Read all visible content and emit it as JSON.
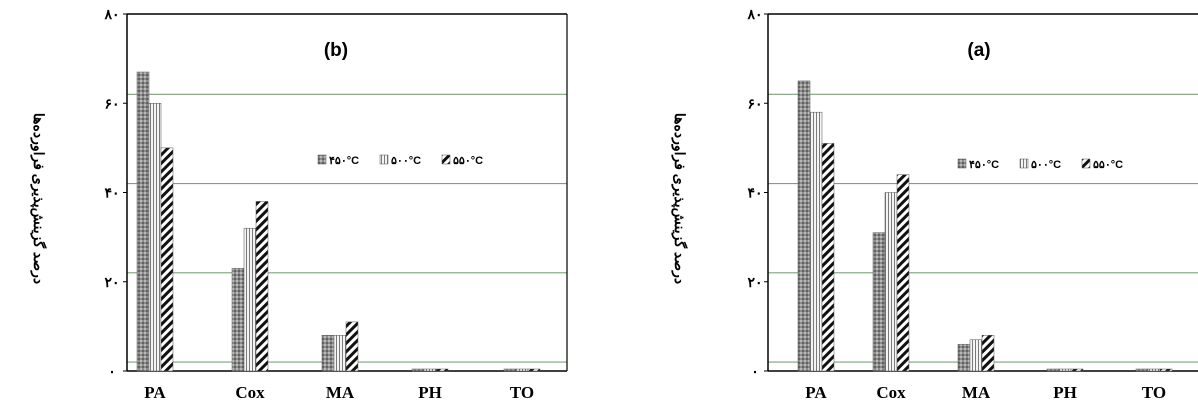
{
  "chart_data": [
    {
      "type": "bar",
      "panel_label": "(b)",
      "ylabel": "درصد گزینش‌پذیری فراورده‌ها",
      "y_ticks": [
        "۰",
        "۲۰",
        "۴۰",
        "۶۰",
        "۸۰"
      ],
      "y_tick_values": [
        0,
        20,
        40,
        60,
        80
      ],
      "ylim": [
        0,
        80
      ],
      "categories": [
        "PA",
        "Cox",
        "MA",
        "PH",
        "TO"
      ],
      "series": [
        {
          "name": "۴۵۰°C",
          "values": [
            67,
            23,
            8,
            0.3,
            0.3
          ],
          "pattern": "dots"
        },
        {
          "name": "۵۰۰°C",
          "values": [
            60,
            32,
            8,
            0.3,
            0.3
          ],
          "pattern": "vertical"
        },
        {
          "name": "۵۵۰°C",
          "values": [
            50,
            38,
            11,
            0.3,
            0.3
          ],
          "pattern": "diagonal"
        }
      ],
      "gridlines": [
        2,
        22,
        42,
        62
      ],
      "legend_position": "top-right"
    },
    {
      "type": "bar",
      "panel_label": "(a)",
      "ylabel": "درصد گزینش‌پذیری فراورده‌ها",
      "y_ticks": [
        "۰",
        "۲۰",
        "۴۰",
        "۶۰",
        "۸۰"
      ],
      "y_tick_values": [
        0,
        20,
        40,
        60,
        80
      ],
      "ylim": [
        0,
        80
      ],
      "categories": [
        "PA",
        "Cox",
        "MA",
        "PH",
        "TO"
      ],
      "series": [
        {
          "name": "۴۵۰°C",
          "values": [
            65,
            31,
            6,
            0.3,
            0.3
          ],
          "pattern": "dots"
        },
        {
          "name": "۵۰۰°C",
          "values": [
            58,
            40,
            7,
            0.3,
            0.3
          ],
          "pattern": "vertical"
        },
        {
          "name": "۵۵۰°C",
          "values": [
            51,
            44,
            8,
            0.3,
            0.3
          ],
          "pattern": "diagonal"
        }
      ],
      "gridlines": [
        2,
        22,
        42,
        62
      ],
      "legend_position": "top-right"
    }
  ]
}
